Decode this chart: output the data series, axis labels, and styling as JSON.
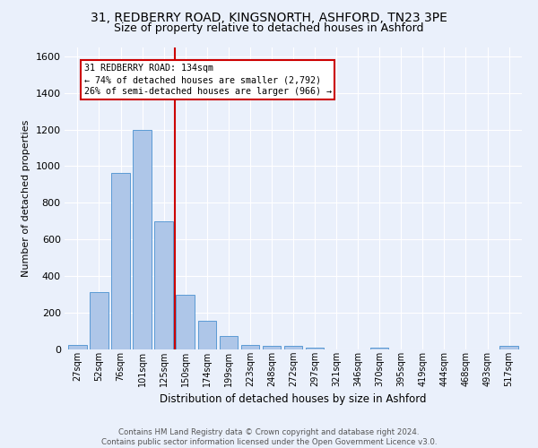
{
  "title": "31, REDBERRY ROAD, KINGSNORTH, ASHFORD, TN23 3PE",
  "subtitle": "Size of property relative to detached houses in Ashford",
  "xlabel": "Distribution of detached houses by size in Ashford",
  "ylabel": "Number of detached properties",
  "categories": [
    "27sqm",
    "52sqm",
    "76sqm",
    "101sqm",
    "125sqm",
    "150sqm",
    "174sqm",
    "199sqm",
    "223sqm",
    "248sqm",
    "272sqm",
    "297sqm",
    "321sqm",
    "346sqm",
    "370sqm",
    "395sqm",
    "419sqm",
    "444sqm",
    "468sqm",
    "493sqm",
    "517sqm"
  ],
  "values": [
    25,
    315,
    965,
    1200,
    700,
    300,
    155,
    75,
    25,
    18,
    18,
    12,
    0,
    0,
    12,
    0,
    0,
    0,
    0,
    0,
    18
  ],
  "bar_color": "#aec6e8",
  "bar_edge_color": "#5b9bd5",
  "vline_x": 4.5,
  "vline_color": "#cc0000",
  "annotation_title": "31 REDBERRY ROAD: 134sqm",
  "annotation_line1": "← 74% of detached houses are smaller (2,792)",
  "annotation_line2": "26% of semi-detached houses are larger (966) →",
  "annotation_box_color": "#cc0000",
  "ylim": [
    0,
    1650
  ],
  "yticks": [
    0,
    200,
    400,
    600,
    800,
    1000,
    1200,
    1400,
    1600
  ],
  "bg_color": "#eaf0fb",
  "grid_color": "#ffffff",
  "fig_bg_color": "#eaf0fb",
  "footer_line1": "Contains HM Land Registry data © Crown copyright and database right 2024.",
  "footer_line2": "Contains public sector information licensed under the Open Government Licence v3.0.",
  "title_fontsize": 10,
  "subtitle_fontsize": 9
}
